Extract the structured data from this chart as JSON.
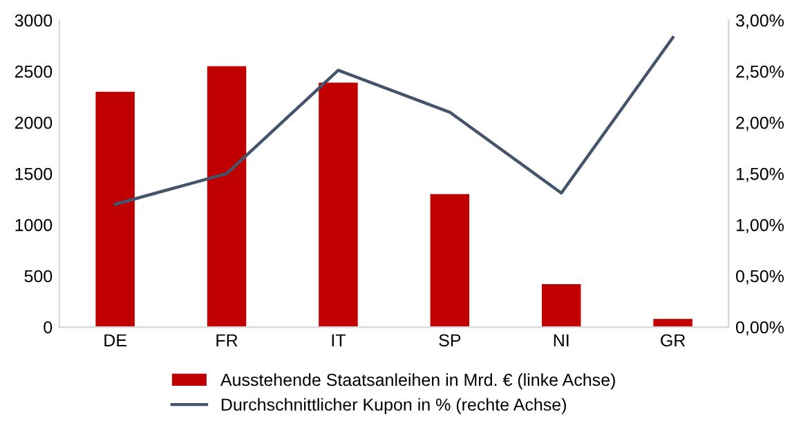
{
  "chart_data": {
    "type": "bar",
    "categories": [
      "DE",
      "FR",
      "IT",
      "SP",
      "NI",
      "GR"
    ],
    "series": [
      {
        "name": "Ausstehende Staatsanleihen in Mrd. € (linke Achse)",
        "color": "#c00000",
        "values": [
          2300,
          2550,
          2390,
          1300,
          420,
          80
        ]
      },
      {
        "name": "Durchschnittlicher Kupon in % (rechte Achse)",
        "type": "line",
        "axis": "y2",
        "color": "#44546a",
        "values": [
          1.2,
          1.5,
          2.51,
          2.1,
          1.31,
          2.83
        ]
      }
    ],
    "ylim": [
      0,
      3000
    ],
    "yticks": [
      0,
      500,
      1000,
      1500,
      2000,
      2500,
      3000
    ],
    "y2lim": [
      0,
      3
    ],
    "y2ticks": [
      {
        "value": 0,
        "label": "0,00%"
      },
      {
        "value": 0.5,
        "label": "0,50%"
      },
      {
        "value": 1,
        "label": "1,00%"
      },
      {
        "value": 1.5,
        "label": "1,50%"
      },
      {
        "value": 2,
        "label": "2,00%"
      },
      {
        "value": 2.5,
        "label": "2,50%"
      },
      {
        "value": 3,
        "label": "3,00%"
      }
    ],
    "legend": "bottom",
    "grid": false
  }
}
